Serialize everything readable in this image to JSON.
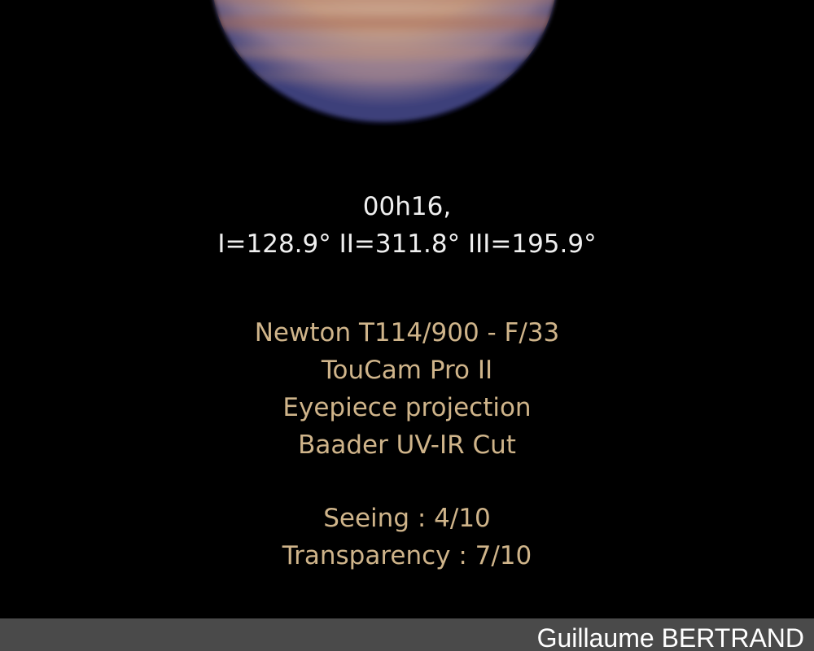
{
  "observation": {
    "time": "00h16,",
    "longitudes": "I=128.9° II=311.8° III=195.9°"
  },
  "equipment": [
    "Newton T114/900 - F/33",
    "TouCam Pro II",
    "Eyepiece projection",
    "Baader UV-IR Cut"
  ],
  "conditions": [
    "Seeing : 4/10",
    "Transparency : 7/10"
  ],
  "credit": {
    "author": "Guillaume BERTRAND"
  },
  "colors": {
    "background": "#000000",
    "info_text": "#efefef",
    "details_text": "#cfb48a",
    "credit_bar": "#4a4a4a",
    "planet_disk": "#c9a287",
    "planet_limb": "#4a4f8a"
  },
  "subject": {
    "icon": "jupiter-planet-disk"
  }
}
